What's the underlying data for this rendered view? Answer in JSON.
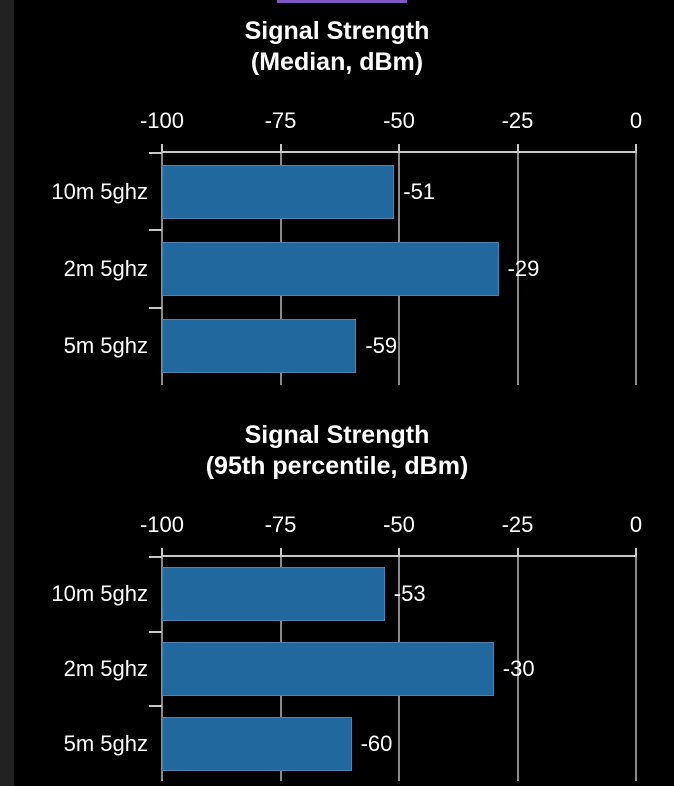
{
  "page": {
    "background_color": "#000000",
    "left_strip_color": "#212121",
    "accent_line_color": "#7e57c2",
    "text_color": "#ffffff",
    "grid_color": "#8a8a8a",
    "axis_color": "#c8c8c8"
  },
  "chart_data": [
    {
      "type": "bar",
      "orientation": "horizontal",
      "title_line1": "Signal Strength",
      "title_line2": "(Median, dBm)",
      "categories": [
        "10m 5ghz",
        "2m 5ghz",
        "5m 5ghz"
      ],
      "values": [
        -51,
        -29,
        -59
      ],
      "value_labels": [
        "-51",
        "-29",
        "-59"
      ],
      "xlim": [
        -100,
        0
      ],
      "x_ticks": [
        -100,
        -75,
        -50,
        -25,
        0
      ],
      "x_tick_labels": [
        "-100",
        "-75",
        "-50",
        "-25",
        "0"
      ],
      "grid": "on",
      "legend": "none",
      "bar_color": "#20689e",
      "bar_border_color": "#4d84ad"
    },
    {
      "type": "bar",
      "orientation": "horizontal",
      "title_line1": "Signal Strength",
      "title_line2": "(95th percentile, dBm)",
      "categories": [
        "10m 5ghz",
        "2m 5ghz",
        "5m 5ghz"
      ],
      "values": [
        -53,
        -30,
        -60
      ],
      "value_labels": [
        "-53",
        "-30",
        "-60"
      ],
      "xlim": [
        -100,
        0
      ],
      "x_ticks": [
        -100,
        -75,
        -50,
        -25,
        0
      ],
      "x_tick_labels": [
        "-100",
        "-75",
        "-50",
        "-25",
        "0"
      ],
      "grid": "on",
      "legend": "none",
      "bar_color": "#20689e",
      "bar_border_color": "#4d84ad"
    }
  ]
}
